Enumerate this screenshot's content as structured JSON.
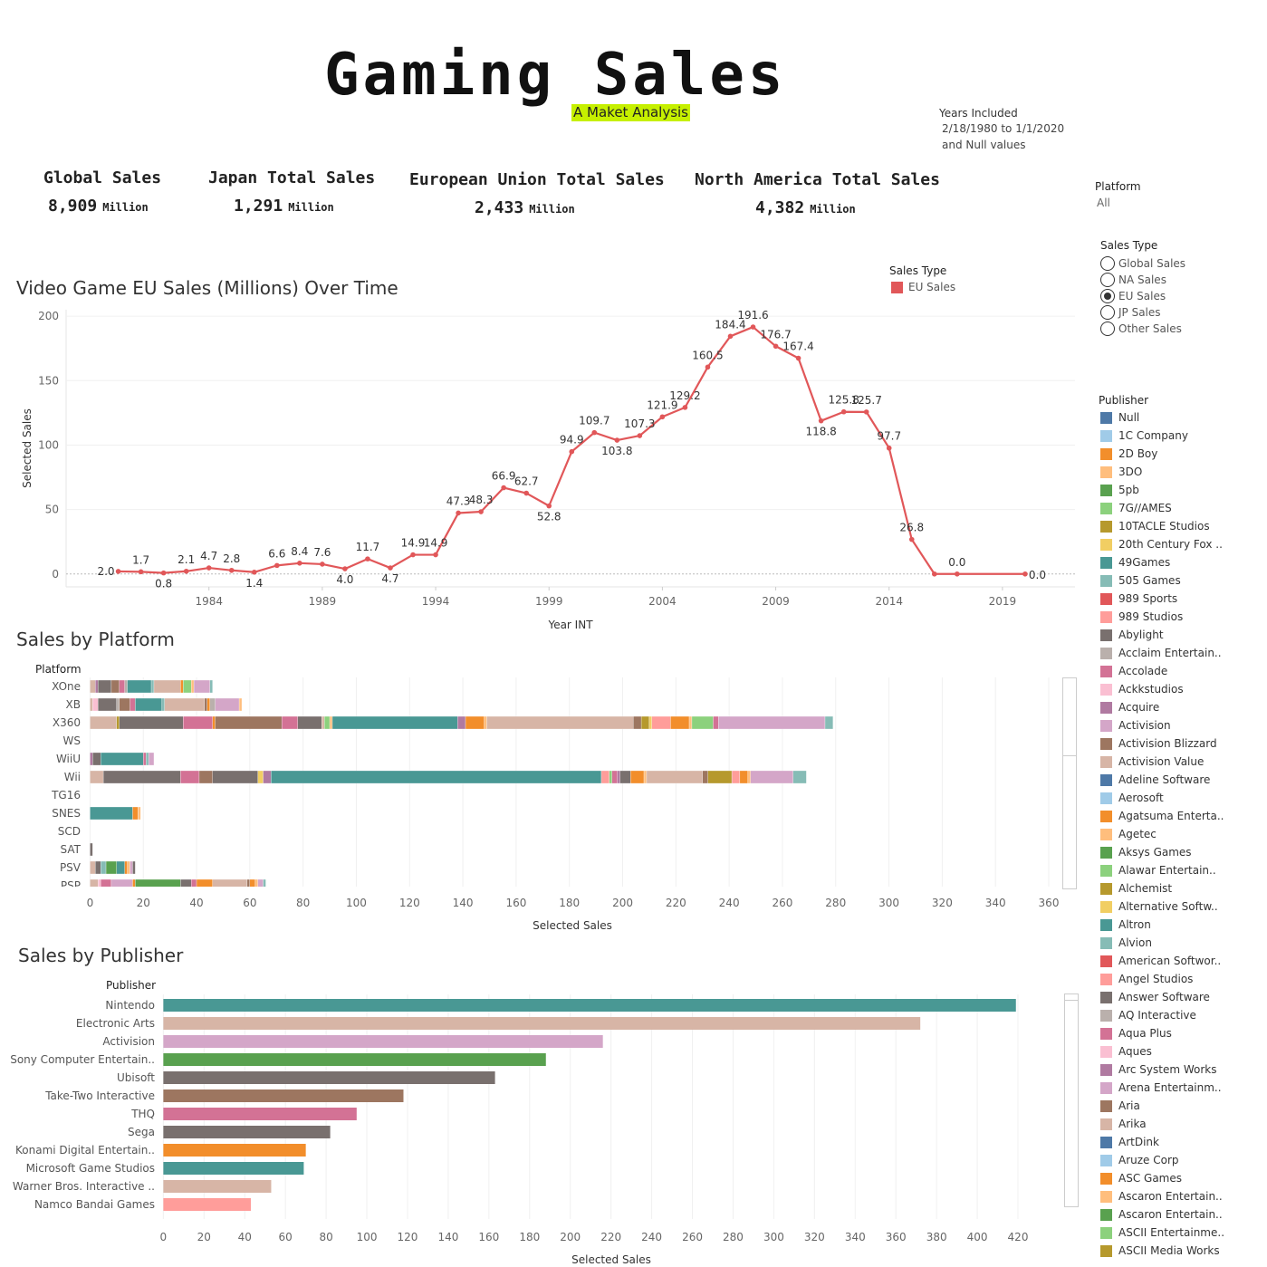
{
  "header": {
    "title": "Gaming Sales",
    "subtitle": "A Maket Analysis",
    "years_label": "Years Included",
    "years_range": "2/18/1980 to 1/1/2020",
    "years_null": "and Null values"
  },
  "kpis": [
    {
      "title": "Global Sales",
      "value": "8,909",
      "unit": "Million"
    },
    {
      "title": "Japan Total Sales",
      "value": "1,291",
      "unit": "Million"
    },
    {
      "title": "European Union Total Sales",
      "value": "2,433",
      "unit": "Million"
    },
    {
      "title": "North America Total Sales",
      "value": "4,382",
      "unit": "Million"
    }
  ],
  "filters": {
    "platform_label": "Platform",
    "platform_value": "All",
    "sales_type_label": "Sales Type",
    "sales_type_options": [
      "Global Sales",
      "NA Sales",
      "EU Sales",
      "JP Sales",
      "Other Sales"
    ],
    "sales_type_selected": "EU Sales"
  },
  "publisher_legend": {
    "title": "Publisher",
    "items": [
      {
        "name": "Null",
        "color": "#4e79a7"
      },
      {
        "name": "1C Company",
        "color": "#a0cbe8"
      },
      {
        "name": "2D Boy",
        "color": "#f28e2b"
      },
      {
        "name": "3DO",
        "color": "#ffbe7d"
      },
      {
        "name": "5pb",
        "color": "#59a14f"
      },
      {
        "name": "7G//AMES",
        "color": "#8cd17d"
      },
      {
        "name": "10TACLE Studios",
        "color": "#b6992d"
      },
      {
        "name": "20th Century Fox ..",
        "color": "#f1ce63"
      },
      {
        "name": "49Games",
        "color": "#499894"
      },
      {
        "name": "505 Games",
        "color": "#86bcb6"
      },
      {
        "name": "989 Sports",
        "color": "#e15759"
      },
      {
        "name": "989 Studios",
        "color": "#ff9d9a"
      },
      {
        "name": "Abylight",
        "color": "#79706e"
      },
      {
        "name": "Acclaim Entertain..",
        "color": "#bab0ac"
      },
      {
        "name": "Accolade",
        "color": "#d37295"
      },
      {
        "name": "Ackkstudios",
        "color": "#fabfd2"
      },
      {
        "name": "Acquire",
        "color": "#b07aa1"
      },
      {
        "name": "Activision",
        "color": "#d4a6c8"
      },
      {
        "name": "Activision Blizzard",
        "color": "#9d7660"
      },
      {
        "name": "Activision Value",
        "color": "#d7b5a6"
      },
      {
        "name": "Adeline Software",
        "color": "#4e79a7"
      },
      {
        "name": "Aerosoft",
        "color": "#a0cbe8"
      },
      {
        "name": "Agatsuma Enterta..",
        "color": "#f28e2b"
      },
      {
        "name": "Agetec",
        "color": "#ffbe7d"
      },
      {
        "name": "Aksys Games",
        "color": "#59a14f"
      },
      {
        "name": "Alawar Entertain..",
        "color": "#8cd17d"
      },
      {
        "name": "Alchemist",
        "color": "#b6992d"
      },
      {
        "name": "Alternative Softw..",
        "color": "#f1ce63"
      },
      {
        "name": "Altron",
        "color": "#499894"
      },
      {
        "name": "Alvion",
        "color": "#86bcb6"
      },
      {
        "name": "American Softwor..",
        "color": "#e15759"
      },
      {
        "name": "Angel Studios",
        "color": "#ff9d9a"
      },
      {
        "name": "Answer Software",
        "color": "#79706e"
      },
      {
        "name": "AQ Interactive",
        "color": "#bab0ac"
      },
      {
        "name": "Aqua Plus",
        "color": "#d37295"
      },
      {
        "name": "Aques",
        "color": "#fabfd2"
      },
      {
        "name": "Arc System Works",
        "color": "#b07aa1"
      },
      {
        "name": "Arena Entertainm..",
        "color": "#d4a6c8"
      },
      {
        "name": "Aria",
        "color": "#9d7660"
      },
      {
        "name": "Arika",
        "color": "#d7b5a6"
      },
      {
        "name": "ArtDink",
        "color": "#4e79a7"
      },
      {
        "name": "Aruze Corp",
        "color": "#a0cbe8"
      },
      {
        "name": "ASC Games",
        "color": "#f28e2b"
      },
      {
        "name": "Ascaron Entertain..",
        "color": "#ffbe7d"
      },
      {
        "name": "Ascaron Entertain..",
        "color": "#59a14f"
      },
      {
        "name": "ASCII Entertainme..",
        "color": "#8cd17d"
      },
      {
        "name": "ASCII Media Works",
        "color": "#b6992d"
      }
    ]
  },
  "chart_data": [
    {
      "id": "eu-over-time",
      "type": "line",
      "title": "Video Game EU Sales  (Millions) Over Time",
      "xlabel": "Year INT",
      "ylabel": "Selected Sales",
      "legend_title": "Sales Type",
      "legend_entry": "EU Sales",
      "color": "#e15759",
      "x": [
        1980,
        1981,
        1982,
        1983,
        1984,
        1985,
        1986,
        1987,
        1988,
        1989,
        1990,
        1991,
        1992,
        1993,
        1994,
        1995,
        1996,
        1997,
        1998,
        1999,
        2000,
        2001,
        2002,
        2003,
        2004,
        2005,
        2006,
        2007,
        2008,
        2009,
        2010,
        2011,
        2012,
        2013,
        2014,
        2015,
        2016,
        2017,
        2020
      ],
      "values": [
        2.0,
        1.7,
        0.8,
        2.1,
        4.7,
        2.8,
        1.4,
        6.6,
        8.4,
        7.6,
        4.0,
        11.7,
        4.7,
        14.9,
        14.9,
        47.3,
        48.3,
        66.9,
        62.7,
        52.8,
        94.9,
        109.7,
        103.8,
        107.3,
        121.9,
        129.2,
        160.5,
        184.4,
        191.6,
        176.7,
        167.4,
        118.8,
        125.8,
        125.7,
        97.7,
        26.8,
        0.0,
        0.0,
        0.0
      ],
      "point_labels": [
        "2.0",
        "1.7",
        "0.8",
        "2.1",
        "4.7",
        "2.8",
        "1.4",
        "6.6",
        "8.4",
        "7.6",
        "4.0",
        "11.7",
        "4.7",
        "14.9",
        "14.9",
        "47.3",
        "48.3",
        "66.9",
        "62.7",
        "52.8",
        "94.9",
        "109.7",
        "103.8",
        "107.3",
        "121.9",
        "129.2",
        "160.5",
        "184.4",
        "191.6",
        "176.7",
        "167.4",
        "118.8",
        "125.8",
        "125.7",
        "97.7",
        "26.8",
        "",
        "0.0",
        "0.0"
      ],
      "xticks": [
        1984,
        1989,
        1994,
        1999,
        2004,
        2009,
        2014,
        2019
      ],
      "yticks": [
        0,
        50,
        100,
        150,
        200
      ],
      "xlim": [
        1977.7,
        2022.2
      ],
      "ylim": [
        -10,
        205
      ]
    },
    {
      "id": "sales-by-platform",
      "type": "bar",
      "stacked": true,
      "title": "Sales by Platform",
      "category_header": "Platform",
      "xlabel": "Selected Sales",
      "xlim": [
        -1.5,
        360
      ],
      "xticks": [
        0,
        20,
        40,
        60,
        80,
        100,
        120,
        140,
        160,
        180,
        200,
        220,
        240,
        260,
        280,
        300,
        320,
        340,
        360
      ],
      "categories": [
        "XOne",
        "XB",
        "X360",
        "WS",
        "WiiU",
        "Wii",
        "TG16",
        "SNES",
        "SCD",
        "SAT",
        "PSV",
        "PSP"
      ],
      "segments": [
        [
          [
            2,
            "#d7b5a6"
          ],
          [
            1,
            "#b07aa1"
          ],
          [
            5,
            "#79706e"
          ],
          [
            3,
            "#9d7660"
          ],
          [
            2,
            "#d37295"
          ],
          [
            1,
            "#bab0ac"
          ],
          [
            9,
            "#499894"
          ],
          [
            1,
            "#86bcb6"
          ],
          [
            10,
            "#d7b5a6"
          ],
          [
            1,
            "#f28e2b"
          ],
          [
            3,
            "#8cd17d"
          ],
          [
            1,
            "#ffbe7d"
          ],
          [
            6,
            "#d4a6c8"
          ],
          [
            1,
            "#86bcb6"
          ]
        ],
        [
          [
            1,
            "#d7b5a6"
          ],
          [
            2,
            "#fabfd2"
          ],
          [
            7,
            "#79706e"
          ],
          [
            1,
            "#bab0ac"
          ],
          [
            4,
            "#9d7660"
          ],
          [
            2,
            "#d37295"
          ],
          [
            10,
            "#499894"
          ],
          [
            1,
            "#86bcb6"
          ],
          [
            15,
            "#d7b5a6"
          ],
          [
            1,
            "#9d7660"
          ],
          [
            1,
            "#f28e2b"
          ],
          [
            2,
            "#bab0ac"
          ],
          [
            9,
            "#d4a6c8"
          ],
          [
            1,
            "#ffbe7d"
          ]
        ],
        [
          [
            10,
            "#d7b5a6"
          ],
          [
            1,
            "#b6992d"
          ],
          [
            24,
            "#79706e"
          ],
          [
            11,
            "#d37295"
          ],
          [
            1,
            "#f28e2b"
          ],
          [
            25,
            "#9d7660"
          ],
          [
            6,
            "#d37295"
          ],
          [
            9,
            "#79706e"
          ],
          [
            1,
            "#d7b5a6"
          ],
          [
            2,
            "#8cd17d"
          ],
          [
            1,
            "#ffbe7d"
          ],
          [
            47,
            "#499894"
          ],
          [
            3,
            "#b07aa1"
          ],
          [
            7,
            "#f28e2b"
          ],
          [
            1,
            "#ffbe7d"
          ],
          [
            55,
            "#d7b5a6"
          ],
          [
            3,
            "#9d7660"
          ],
          [
            3,
            "#b6992d"
          ],
          [
            1,
            "#f1ce63"
          ],
          [
            7,
            "#ff9d9a"
          ],
          [
            7,
            "#f28e2b"
          ],
          [
            1,
            "#ffbe7d"
          ],
          [
            8,
            "#8cd17d"
          ],
          [
            2,
            "#d37295"
          ],
          [
            40,
            "#d4a6c8"
          ],
          [
            3,
            "#86bcb6"
          ]
        ],
        [],
        [
          [
            1,
            "#b07aa1"
          ],
          [
            3,
            "#79706e"
          ],
          [
            16,
            "#499894"
          ],
          [
            1,
            "#d37295"
          ],
          [
            1,
            "#86bcb6"
          ],
          [
            2,
            "#d4a6c8"
          ]
        ],
        [
          [
            5,
            "#d7b5a6"
          ],
          [
            29,
            "#79706e"
          ],
          [
            7,
            "#d37295"
          ],
          [
            5,
            "#9d7660"
          ],
          [
            17,
            "#79706e"
          ],
          [
            2,
            "#f1ce63"
          ],
          [
            3,
            "#b07aa1"
          ],
          [
            124,
            "#499894"
          ],
          [
            3,
            "#ff9d9a"
          ],
          [
            1,
            "#8cd17d"
          ],
          [
            2,
            "#d37295"
          ],
          [
            1,
            "#b07aa1"
          ],
          [
            4,
            "#79706e"
          ],
          [
            5,
            "#f28e2b"
          ],
          [
            1,
            "#ffbe7d"
          ],
          [
            21,
            "#d7b5a6"
          ],
          [
            2,
            "#9d7660"
          ],
          [
            9,
            "#b6992d"
          ],
          [
            3,
            "#ff9d9a"
          ],
          [
            3,
            "#f28e2b"
          ],
          [
            1,
            "#ffbe7d"
          ],
          [
            16,
            "#d4a6c8"
          ],
          [
            5,
            "#86bcb6"
          ]
        ],
        [],
        [
          [
            16,
            "#499894"
          ],
          [
            2,
            "#f28e2b"
          ],
          [
            1,
            "#ffbe7d"
          ]
        ],
        [],
        [
          [
            1,
            "#79706e"
          ]
        ],
        [
          [
            2,
            "#d7b5a6"
          ],
          [
            2,
            "#79706e"
          ],
          [
            2,
            "#86bcb6"
          ],
          [
            4,
            "#59a14f"
          ],
          [
            3,
            "#499894"
          ],
          [
            1,
            "#f28e2b"
          ],
          [
            1,
            "#ffbe7d"
          ],
          [
            1,
            "#d4a6c8"
          ],
          [
            1,
            "#79706e"
          ]
        ],
        [
          [
            3,
            "#d7b5a6"
          ],
          [
            1,
            "#fabfd2"
          ],
          [
            4,
            "#d37295"
          ],
          [
            8,
            "#d4a6c8"
          ],
          [
            1,
            "#f28e2b"
          ],
          [
            17,
            "#59a14f"
          ],
          [
            4,
            "#79706e"
          ],
          [
            2,
            "#d37295"
          ],
          [
            6,
            "#f28e2b"
          ],
          [
            13,
            "#d7b5a6"
          ],
          [
            1,
            "#9d7660"
          ],
          [
            2,
            "#f28e2b"
          ],
          [
            1,
            "#ffbe7d"
          ],
          [
            2,
            "#d4a6c8"
          ],
          [
            1,
            "#86bcb6"
          ]
        ]
      ]
    },
    {
      "id": "sales-by-publisher",
      "type": "bar",
      "title": "Sales by Publisher",
      "category_header": "Publisher",
      "xlabel": "Selected Sales",
      "xlim": [
        -1.5,
        424
      ],
      "xticks": [
        0,
        20,
        40,
        60,
        80,
        100,
        120,
        140,
        160,
        180,
        200,
        220,
        240,
        260,
        280,
        300,
        320,
        340,
        360,
        380,
        400,
        420
      ],
      "categories": [
        "Nintendo",
        "Electronic Arts",
        "Activision",
        "Sony Computer Entertain..",
        "Ubisoft",
        "Take-Two Interactive",
        "THQ",
        "Sega",
        "Konami Digital Entertain..",
        "Microsoft Game Studios",
        "Warner Bros. Interactive ..",
        "Namco Bandai Games"
      ],
      "values": [
        419,
        372,
        216,
        188,
        163,
        118,
        95,
        82,
        70,
        69,
        53,
        43
      ],
      "colors": [
        "#499894",
        "#d7b5a6",
        "#d4a6c8",
        "#59a14f",
        "#79706e",
        "#9d7660",
        "#d37295",
        "#79706e",
        "#f28e2b",
        "#499894",
        "#d7b5a6",
        "#ff9d9a"
      ]
    }
  ]
}
